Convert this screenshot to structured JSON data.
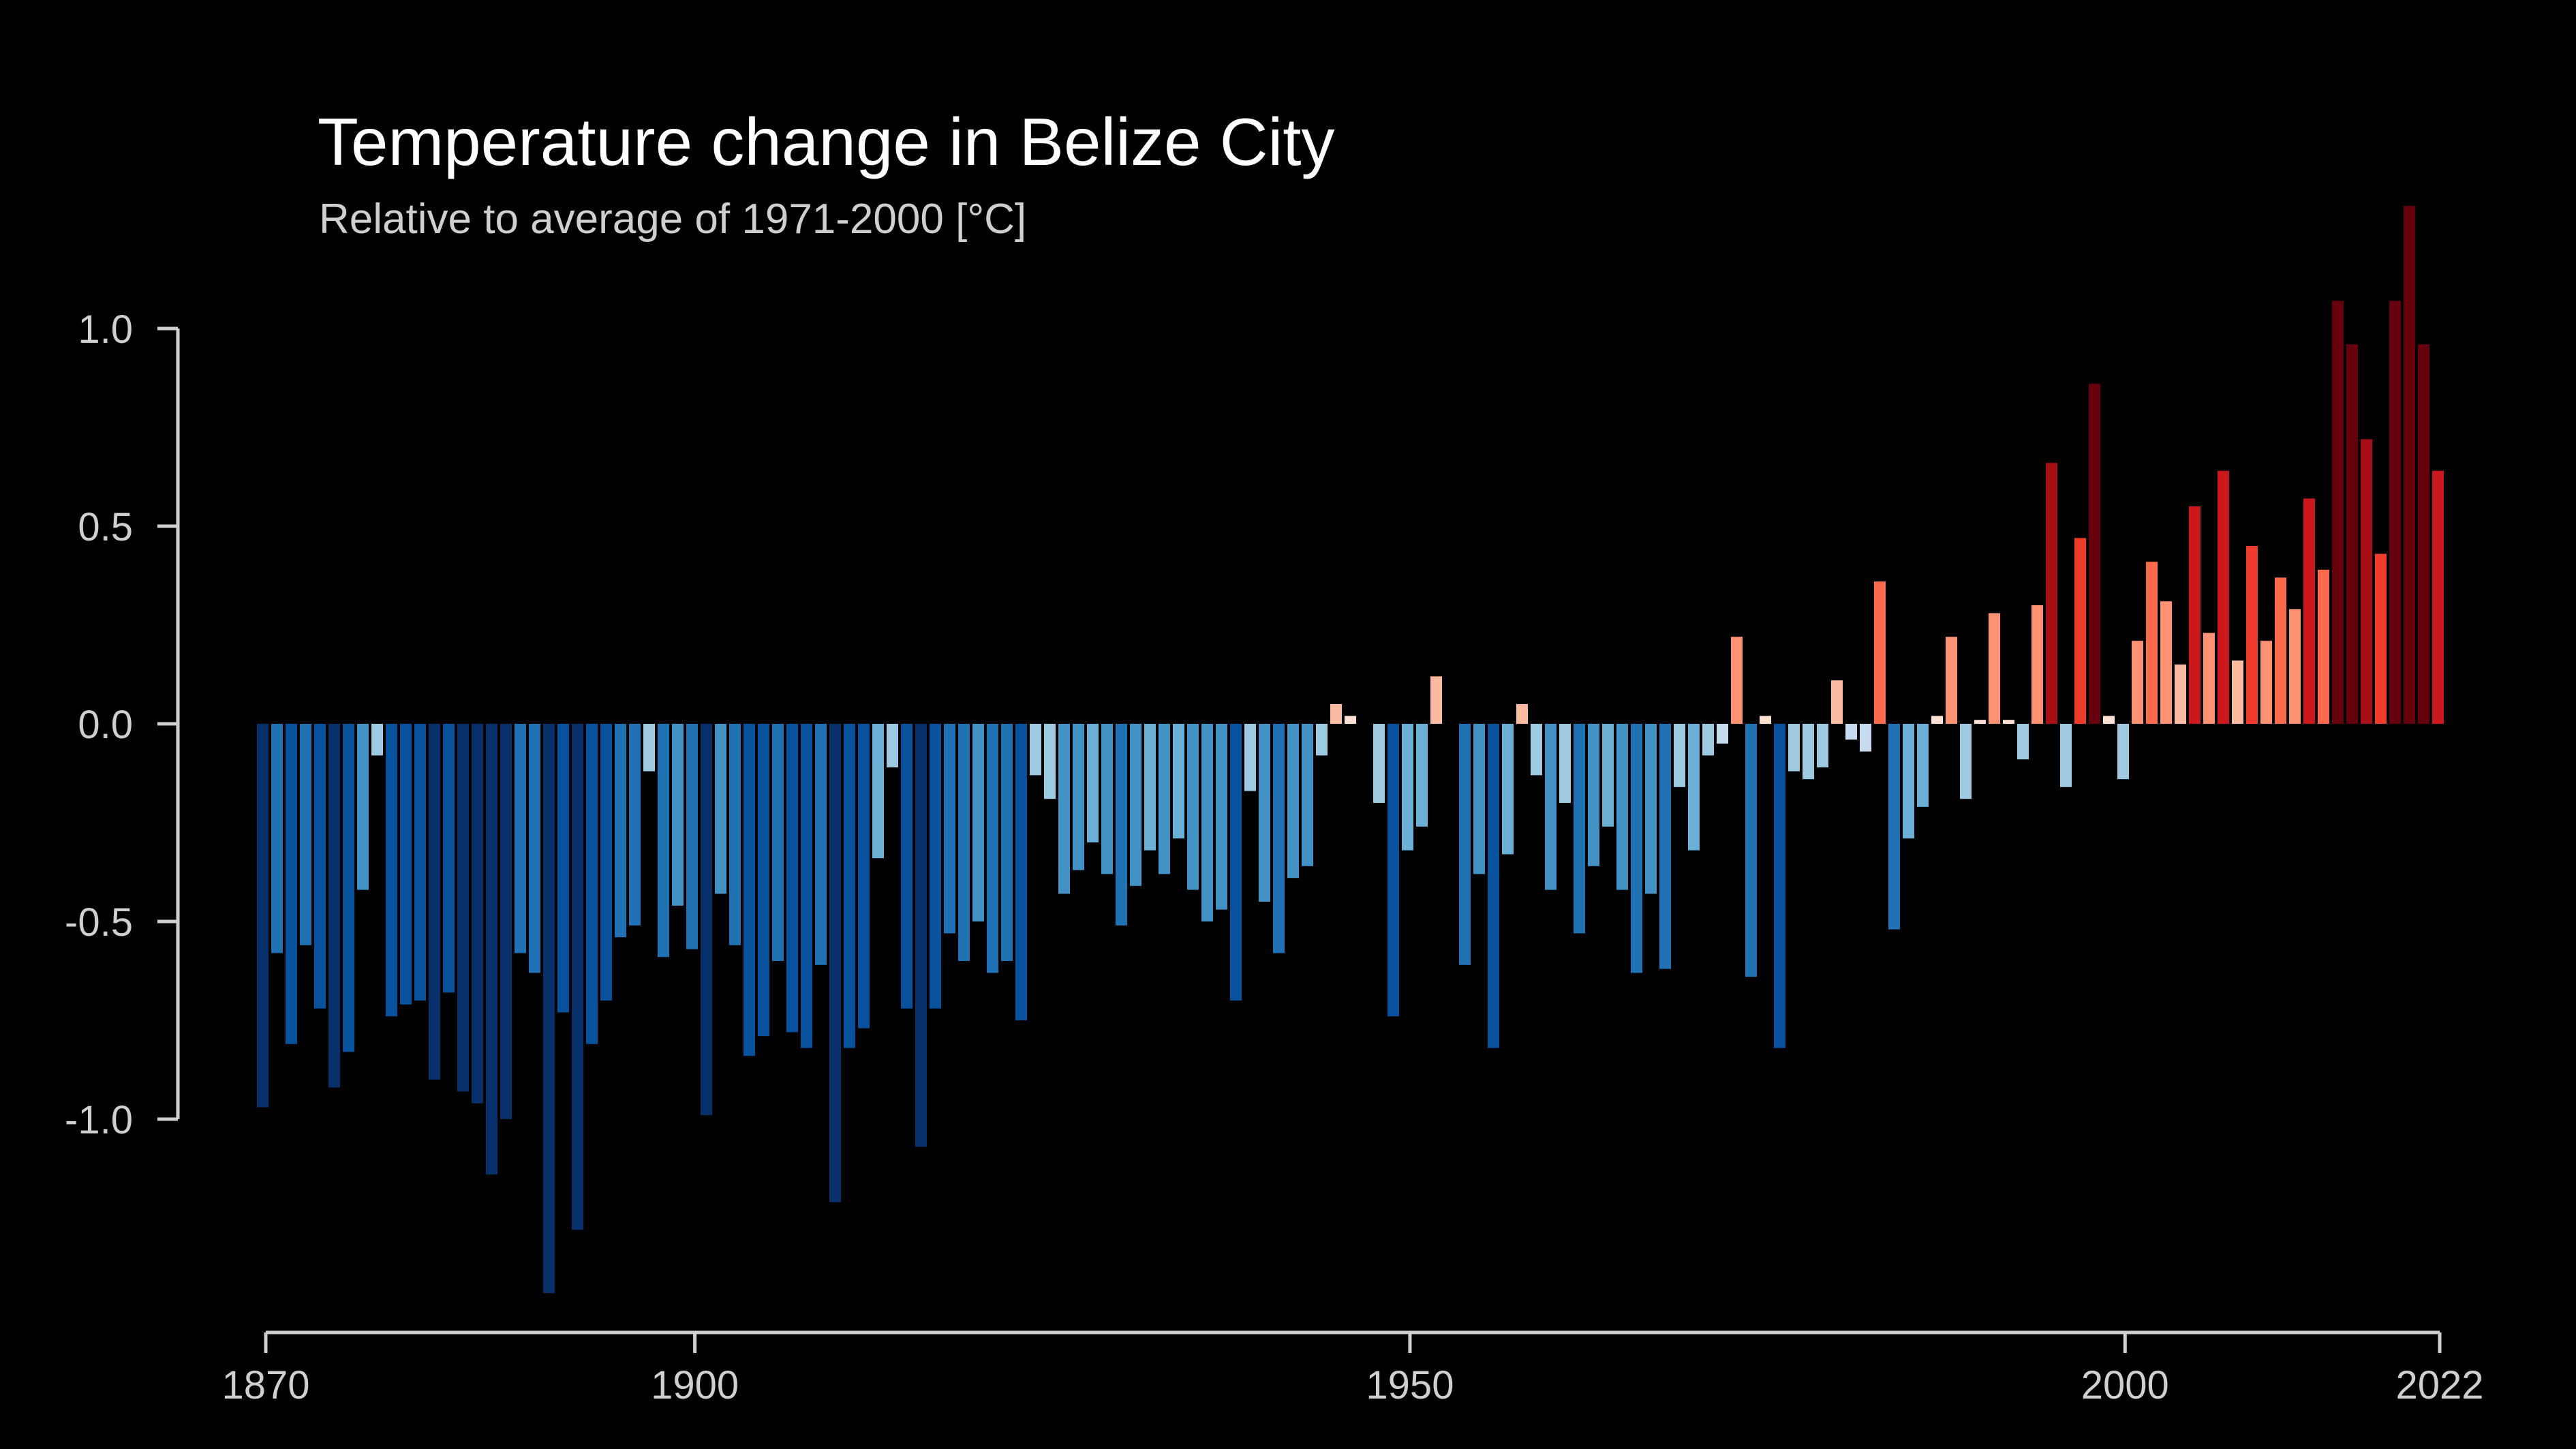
{
  "chart_data": {
    "type": "bar",
    "title": "Temperature change in Belize City",
    "subtitle": "Relative to average of 1971-2000  [°C]",
    "xlabel": "",
    "ylabel": "",
    "xlim": [
      1870,
      2022
    ],
    "ylim": [
      -1.5,
      1.35
    ],
    "y_ticks": [
      "1.0",
      "0.5",
      "0.0",
      "-0.5",
      "-1.0"
    ],
    "x_ticks": [
      "1870",
      "1900",
      "1950",
      "2000",
      "2022"
    ],
    "grid": false,
    "legend": "none",
    "colormap": {
      "darkest_blue": "#08306b",
      "dark_blue": "#08519c",
      "mid_blue": "#2171b5",
      "blue": "#4292c6",
      "light_blue": "#6baed6",
      "pale_blue": "#9ecae1",
      "very_pale_blue": "#c6dbef",
      "pale_red": "#fcbba1",
      "light_red": "#fc9272",
      "red": "#fb6a4a",
      "mid_red": "#ef3b2c",
      "strong_red": "#cb181d",
      "dark_red": "#a50f15",
      "darkest_red": "#67000d"
    },
    "series": [
      {
        "years": [
          1870,
          1871,
          1872,
          1873,
          1874,
          1875,
          1876,
          1877,
          1878,
          1879,
          1880,
          1881,
          1882,
          1883,
          1884,
          1885,
          1886,
          1887,
          1888,
          1889,
          1890,
          1891,
          1892,
          1893,
          1894,
          1895,
          1896,
          1897,
          1898,
          1899,
          1900,
          1901,
          1902,
          1903,
          1904,
          1905,
          1906,
          1907,
          1908,
          1909,
          1910,
          1911,
          1912,
          1913,
          1914,
          1915,
          1916,
          1917,
          1918,
          1919,
          1920,
          1921,
          1922,
          1923,
          1924,
          1925,
          1926,
          1927,
          1928,
          1929,
          1930,
          1931,
          1932,
          1933,
          1934,
          1935,
          1936,
          1937,
          1938,
          1939,
          1940,
          1941,
          1942,
          1943,
          1944,
          1945,
          1946,
          1947,
          1948,
          1949,
          1950,
          1951,
          1952,
          1953,
          1954,
          1955,
          1956,
          1957,
          1958,
          1959,
          1960,
          1961,
          1962,
          1963,
          1964,
          1965,
          1966,
          1967,
          1968,
          1969,
          1970,
          1971,
          1972,
          1973,
          1974,
          1975,
          1976,
          1977,
          1978,
          1979,
          1980,
          1981,
          1982,
          1983,
          1984,
          1985,
          1986,
          1987,
          1988,
          1989,
          1990,
          1991,
          1992,
          1993,
          1994,
          1995,
          1996,
          1997,
          1998,
          1999,
          2000,
          2001,
          2002,
          2003,
          2004,
          2005,
          2006,
          2007,
          2008,
          2009,
          2010,
          2011,
          2012,
          2013,
          2014,
          2015,
          2016,
          2017,
          2018,
          2019,
          2020,
          2021,
          2022
        ],
        "values": [
          -0.97,
          -0.58,
          -0.81,
          -0.56,
          -0.72,
          -0.92,
          -0.83,
          -0.42,
          -0.08,
          -0.74,
          -0.71,
          -0.7,
          -0.9,
          -0.68,
          -0.93,
          -0.96,
          -1.14,
          -1.0,
          -0.58,
          -0.63,
          -1.44,
          -0.73,
          -1.28,
          -0.81,
          -0.7,
          -0.54,
          -0.51,
          -0.12,
          -0.59,
          -0.46,
          -0.57,
          -0.99,
          -0.43,
          -0.56,
          -0.84,
          -0.79,
          -0.6,
          -0.78,
          -0.82,
          -0.61,
          -1.21,
          -0.82,
          -0.77,
          -0.34,
          -0.11,
          -0.72,
          -1.07,
          -0.72,
          -0.53,
          -0.6,
          -0.5,
          -0.63,
          -0.6,
          -0.75,
          -0.13,
          -0.19,
          -0.43,
          -0.37,
          -0.3,
          -0.38,
          -0.51,
          -0.41,
          -0.32,
          -0.38,
          -0.29,
          -0.42,
          -0.5,
          -0.47,
          -0.7,
          -0.17,
          -0.45,
          -0.58,
          -0.39,
          -0.36,
          -0.08,
          0.05,
          0.02,
          0.0,
          -0.2,
          -0.74,
          -0.32,
          -0.26,
          0.12,
          0.0,
          -0.61,
          -0.38,
          -0.82,
          -0.33,
          0.05,
          -0.13,
          -0.42,
          -0.2,
          -0.53,
          -0.36,
          -0.26,
          -0.42,
          -0.63,
          -0.43,
          -0.62,
          -0.16,
          -0.32,
          -0.08,
          -0.05,
          0.22,
          -0.64,
          0.02,
          -0.82,
          -0.12,
          -0.14,
          -0.11,
          0.11,
          -0.04,
          -0.07,
          0.36,
          -0.52,
          -0.29,
          -0.21,
          0.02,
          0.22,
          -0.19,
          0.01,
          0.28,
          0.01,
          -0.09,
          0.3,
          0.66,
          -0.16,
          0.47,
          0.86,
          0.02,
          -0.14,
          0.21,
          0.41,
          0.31,
          0.15,
          0.55,
          0.23,
          0.64,
          0.16,
          0.45,
          0.21,
          0.37,
          0.29,
          0.57,
          0.39,
          1.07,
          0.96,
          0.72,
          0.43,
          1.07,
          1.31,
          0.96,
          0.64
        ]
      }
    ]
  }
}
